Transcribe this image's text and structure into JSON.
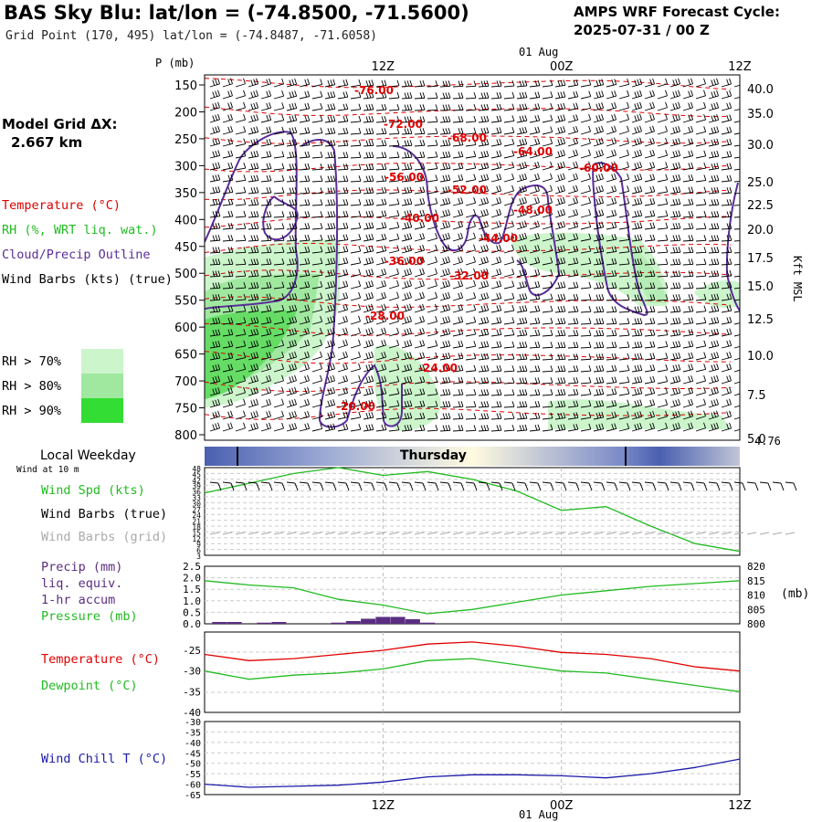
{
  "header": {
    "title": "BAS Sky Blu:  lat/lon = (-74.8500, -71.5600)",
    "subtitle": "Grid Point (170, 495) lat/lon = (-74.8487, -71.6058)",
    "cycle_line1": "AMPS WRF Forecast Cycle:",
    "cycle_line2": "2025-07-31 / 00  Z"
  },
  "side": {
    "model_grid_label": "Model Grid ΔX:",
    "model_grid_value": "2.667 km",
    "legend_temperature": "Temperature (°C)",
    "legend_rh": "RH (%, WRT liq. wat.)",
    "legend_cloud": "Cloud/Precip Outline",
    "legend_wind": "Wind Barbs (kts) (true)",
    "rh_70": "RH > 70%",
    "rh_80": "RH > 80%",
    "rh_90": "RH > 90%",
    "local_weekday": "Local Weekday",
    "wind_at_10m": "Wind at 10 m",
    "weekday_name": "Thursday",
    "cross_section_last_tick": "4.76"
  },
  "colors": {
    "temperature": "#e00000",
    "rh70": "#ccf5cc",
    "rh80": "#a0e8a0",
    "rh90": "#33dd33",
    "cloud": "#5a2d9a",
    "wind": "#000000",
    "green_line": "#22bb22",
    "precip": "#5a2d82",
    "windchill": "#1a1aaa"
  },
  "chart_data": [
    {
      "type": "heatmap",
      "name": "vertical-cross-section",
      "y_axis_label": "P (mb)",
      "y_ticks": [
        150,
        200,
        250,
        300,
        350,
        400,
        450,
        500,
        550,
        600,
        650,
        700,
        750,
        800
      ],
      "right_axis_label": "Kft MSL",
      "right_ticks": [
        "40.0",
        "35.0",
        "30.0",
        "25.0",
        "22.5",
        "20.0",
        "17.5",
        "15.0",
        "12.5",
        "10.0",
        "7.5",
        "5.0"
      ],
      "top_time_ticks": [
        "12Z",
        "00Z",
        "12Z"
      ],
      "top_date_label": "01 Aug",
      "temperature_contour_labels": [
        "-76.00",
        "-72.00",
        "-68.00",
        "-64.00",
        "-60.00",
        "-56.00",
        "-52.00",
        "-48.00",
        "-44.00",
        "-40.00",
        "-36.00",
        "-32.00",
        "-28.00",
        "-24.00",
        "-20.00"
      ]
    },
    {
      "type": "line",
      "name": "wind-10m",
      "legend": [
        "Wind Spd (kts)",
        "Wind Barbs (true)",
        "Wind Barbs (grid)"
      ],
      "y_ticks": [
        48,
        45,
        42,
        39,
        36,
        33,
        30,
        27,
        24,
        21,
        18,
        15,
        12,
        9,
        6,
        3
      ],
      "x_hours": [
        0,
        3,
        6,
        9,
        12,
        15,
        18,
        21,
        24,
        27,
        30,
        33,
        36
      ],
      "wind_speed_kts": [
        35,
        40,
        45,
        48,
        44,
        46,
        42,
        36,
        26,
        28,
        18,
        9,
        5
      ]
    },
    {
      "type": "line",
      "name": "precip-pressure",
      "legend": [
        "Precip (mm)",
        "liq. equiv.",
        "1-hr accum",
        "Pressure (mb)"
      ],
      "left_ticks": [
        "2.5",
        "2.0",
        "1.5",
        "1.0",
        "0.5",
        "0.0"
      ],
      "right_ticks": [
        "820",
        "815",
        "810",
        "805",
        "800"
      ],
      "right_unit": "(mb)",
      "x_hours": [
        0,
        3,
        6,
        9,
        12,
        15,
        18,
        21,
        24,
        27,
        30,
        33,
        36
      ],
      "pressure_mb": [
        815,
        813.5,
        812.5,
        808.5,
        806.5,
        803.5,
        805,
        807.5,
        810,
        811.5,
        813,
        814,
        815
      ],
      "precip_hours": [
        1,
        2,
        4,
        5,
        9,
        10,
        11,
        12,
        13,
        14,
        15
      ],
      "precip_mm": [
        0.08,
        0.08,
        0.05,
        0.08,
        0.05,
        0.12,
        0.22,
        0.3,
        0.3,
        0.2,
        0.05
      ]
    },
    {
      "type": "line",
      "name": "temperature-dewpoint",
      "legend": [
        "Temperature (°C)",
        "Dewpoint (°C)"
      ],
      "y_ticks": [
        "-25",
        "-30",
        "-35",
        "-40"
      ],
      "x_hours": [
        0,
        3,
        6,
        9,
        12,
        15,
        18,
        21,
        24,
        27,
        30,
        33,
        36
      ],
      "temperature_c": [
        -26,
        -27.5,
        -27,
        -26,
        -25,
        -23.5,
        -23,
        -24,
        -25.5,
        -26,
        -27,
        -29,
        -30
      ],
      "dewpoint_c": [
        -30,
        -32,
        -31,
        -30.5,
        -29.5,
        -27.5,
        -27,
        -28.5,
        -30,
        -30.5,
        -32,
        -33.5,
        -35
      ]
    },
    {
      "type": "line",
      "name": "wind-chill",
      "legend": [
        "Wind Chill T (°C)"
      ],
      "y_ticks": [
        "-30",
        "-35",
        "-40",
        "-45",
        "-50",
        "-55",
        "-60",
        "-65"
      ],
      "x_hours": [
        0,
        3,
        6,
        9,
        12,
        15,
        18,
        21,
        24,
        27,
        30,
        33,
        36
      ],
      "windchill_c": [
        -60,
        -61.5,
        -61,
        -60.5,
        -59,
        -56.5,
        -55.5,
        -55.5,
        -56,
        -57,
        -55,
        -52,
        -48
      ],
      "bottom_time_ticks": [
        "12Z",
        "00Z",
        "12Z"
      ],
      "bottom_date_label": "01 Aug"
    }
  ]
}
